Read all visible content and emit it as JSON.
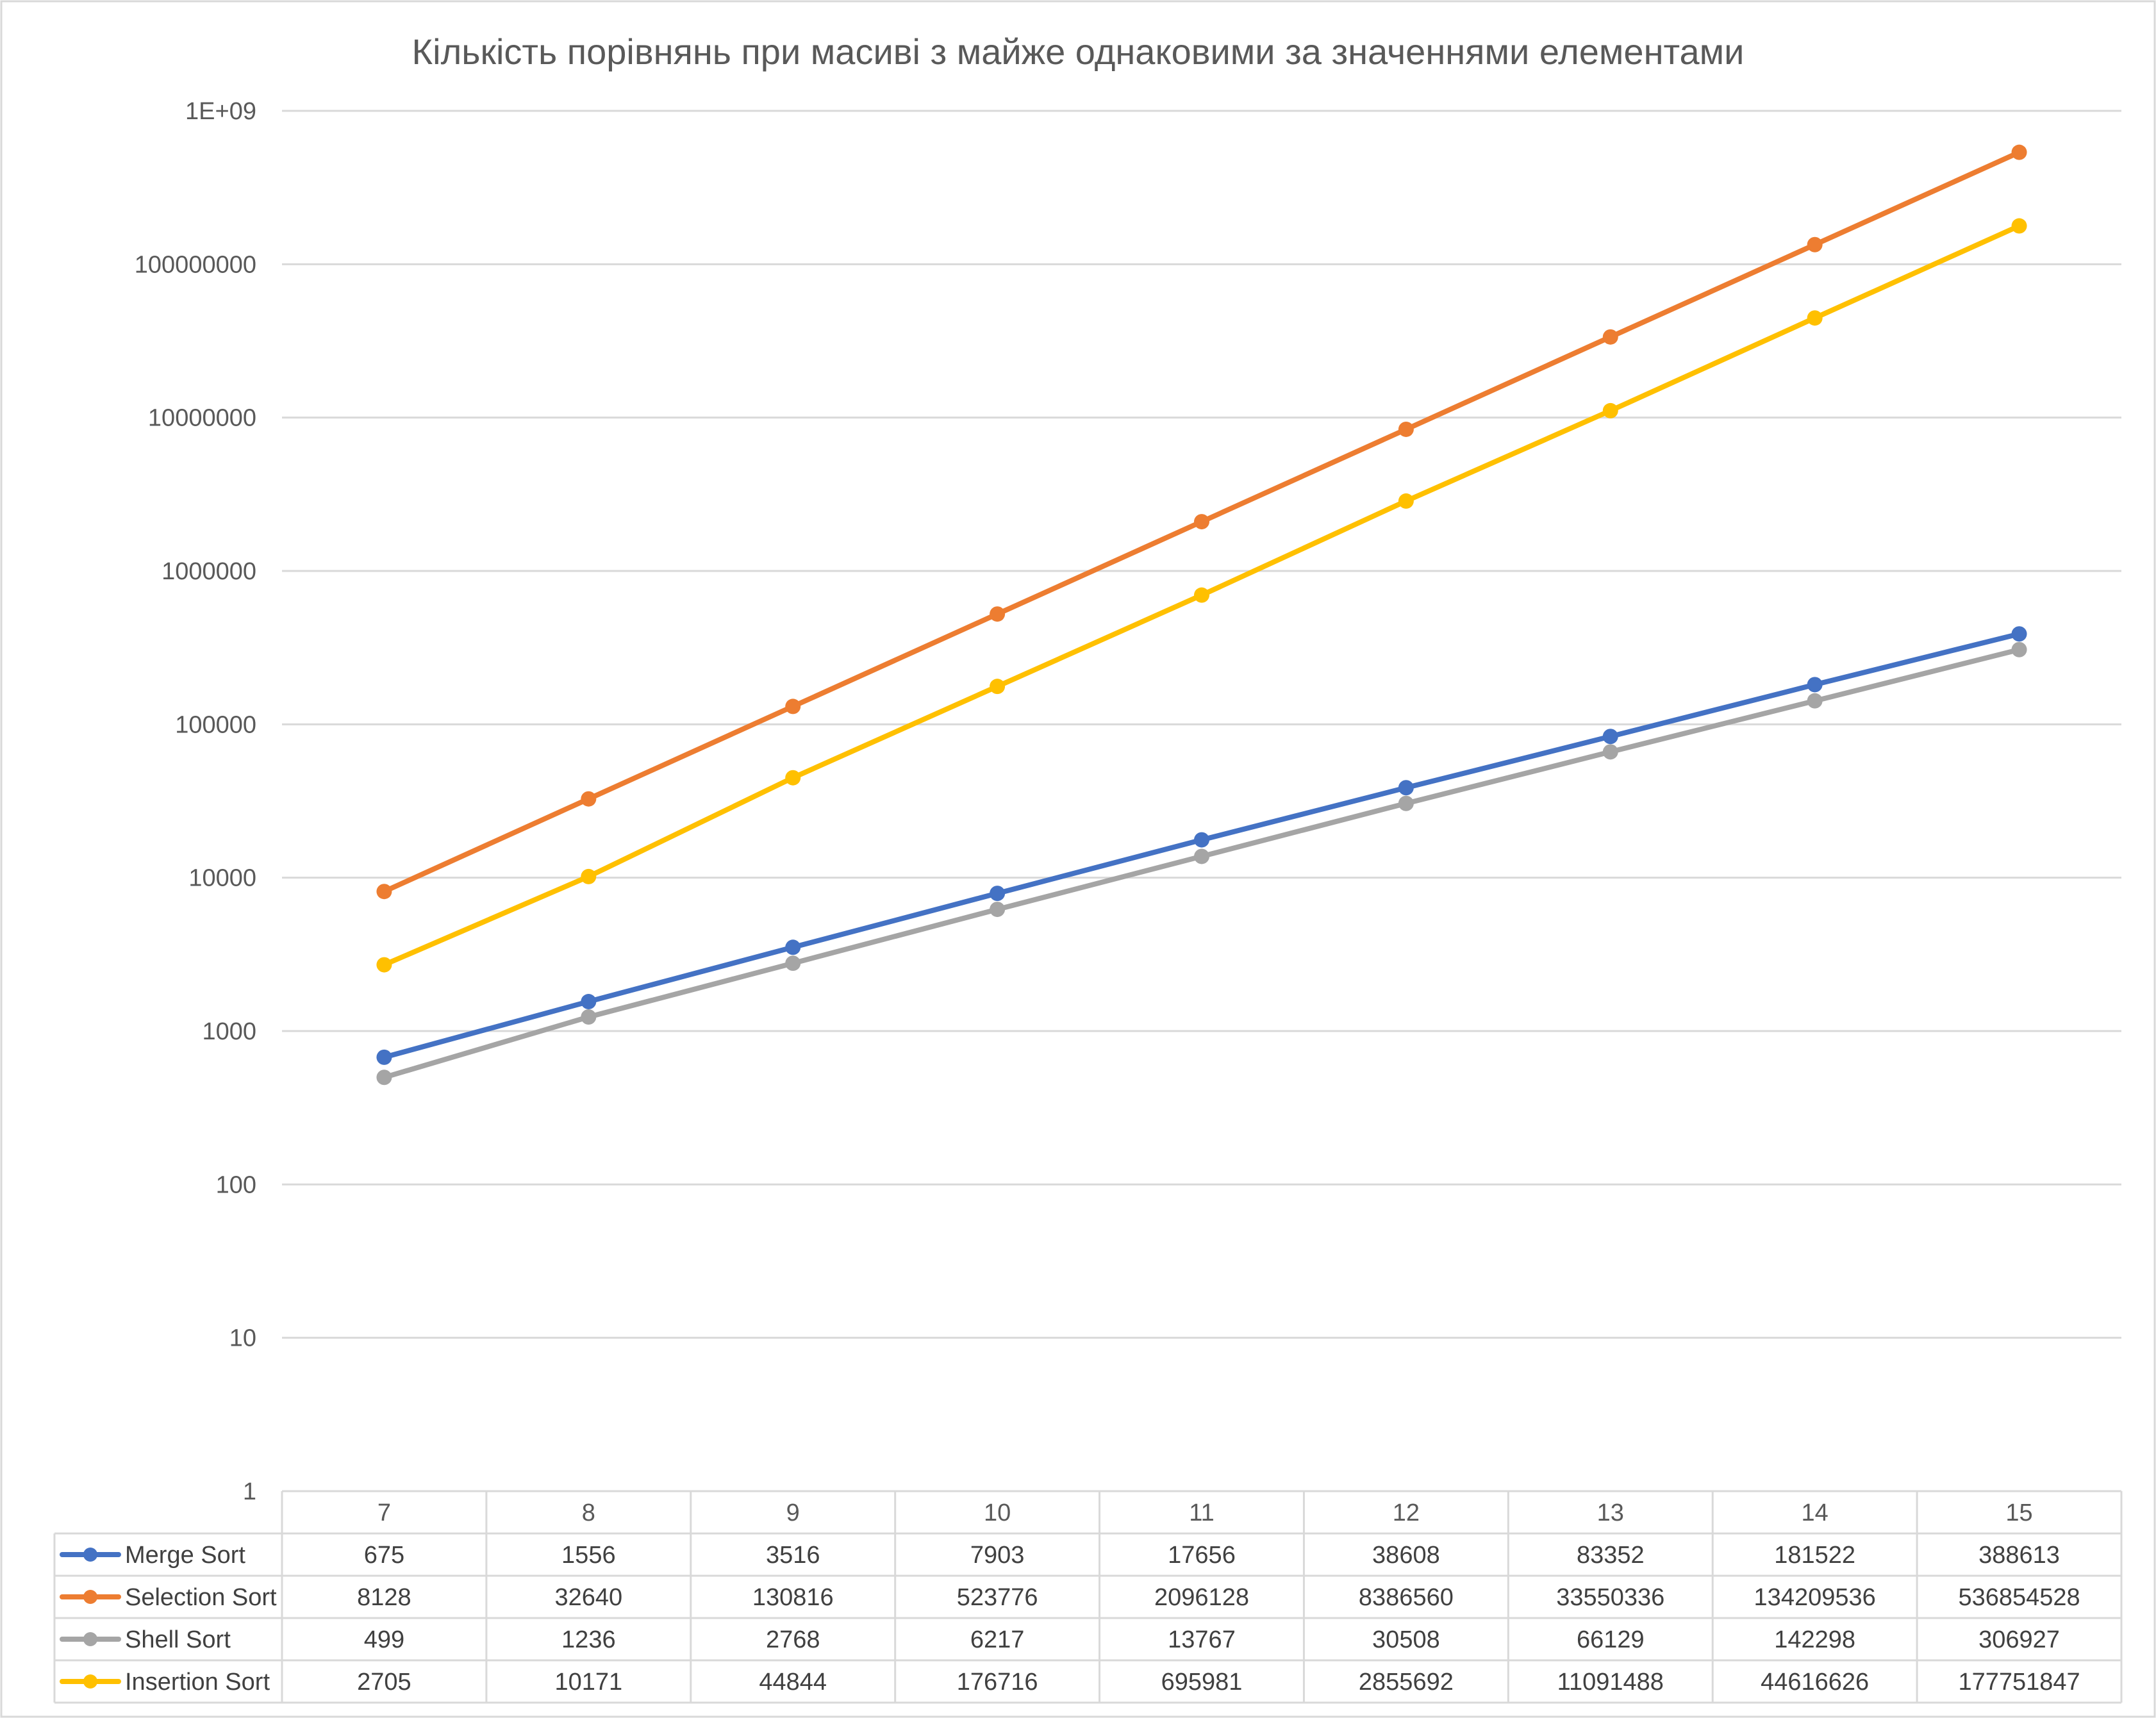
{
  "chart_data": {
    "type": "line",
    "title": "Кількість порівнянь при масиві з майже однаковими за значеннями елементами",
    "y_scale": "log",
    "ylim": [
      1,
      1000000000
    ],
    "y_ticks": [
      {
        "value": 1,
        "label": "1"
      },
      {
        "value": 10,
        "label": "10"
      },
      {
        "value": 100,
        "label": "100"
      },
      {
        "value": 1000,
        "label": "1000"
      },
      {
        "value": 10000,
        "label": "10000"
      },
      {
        "value": 100000,
        "label": "100000"
      },
      {
        "value": 1000000,
        "label": "1000000"
      },
      {
        "value": 10000000,
        "label": "10000000"
      },
      {
        "value": 100000000,
        "label": "100000000"
      },
      {
        "value": 1000000000,
        "label": "1E+09"
      }
    ],
    "grid": true,
    "legend": "data-table",
    "categories": [
      "7",
      "8",
      "9",
      "10",
      "11",
      "12",
      "13",
      "14",
      "15"
    ],
    "series": [
      {
        "name": "Merge Sort",
        "color": "#4472C4",
        "values": [
          675,
          1556,
          3516,
          7903,
          17656,
          38608,
          83352,
          181522,
          388613
        ]
      },
      {
        "name": "Selection Sort",
        "color": "#ED7D31",
        "values": [
          8128,
          32640,
          130816,
          523776,
          2096128,
          8386560,
          33550336,
          134209536,
          536854528
        ]
      },
      {
        "name": "Shell Sort",
        "color": "#A5A5A5",
        "values": [
          499,
          1236,
          2768,
          6217,
          13767,
          30508,
          66129,
          142298,
          306927
        ]
      },
      {
        "name": "Insertion Sort",
        "color": "#FFC000",
        "values": [
          2705,
          10171,
          44844,
          176716,
          695981,
          2855692,
          11091488,
          44616626,
          177751847
        ]
      }
    ]
  }
}
